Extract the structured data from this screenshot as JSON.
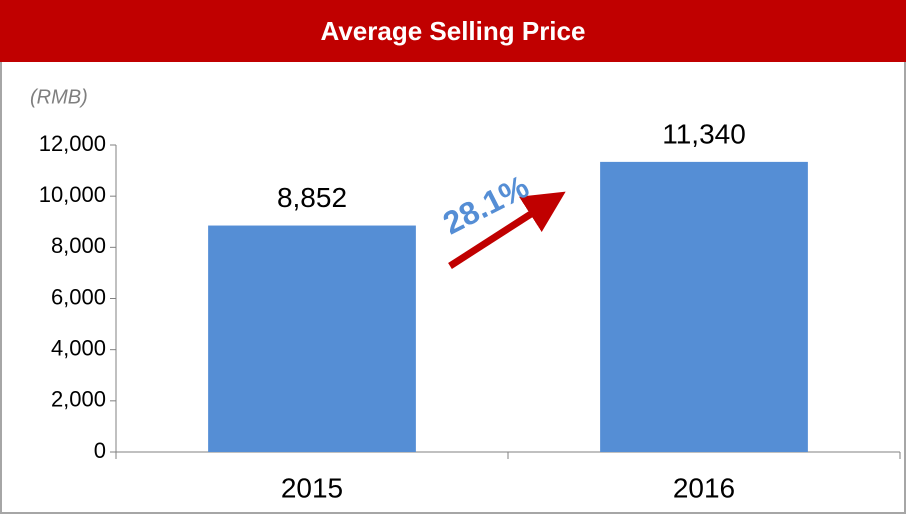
{
  "chart_data": {
    "type": "bar",
    "title": "Average Selling Price",
    "y_label": "(RMB)",
    "categories": [
      "2015",
      "2016"
    ],
    "values": [
      8852,
      11340
    ],
    "value_labels": [
      "8,852",
      "11,340"
    ],
    "color": "#558ed5",
    "ylim": [
      0,
      12000
    ],
    "yticks": [
      0,
      {
        "value": 2000,
        "label": "2,000"
      },
      {
        "value": 4000,
        "label": "4,000"
      },
      {
        "value": 6000,
        "label": "6,000"
      },
      {
        "value": 8000,
        "label": "8,000"
      },
      {
        "value": 10000,
        "label": "10,000"
      },
      {
        "value": 12000,
        "label": "12,000"
      }
    ],
    "annotation": "28.1%"
  }
}
